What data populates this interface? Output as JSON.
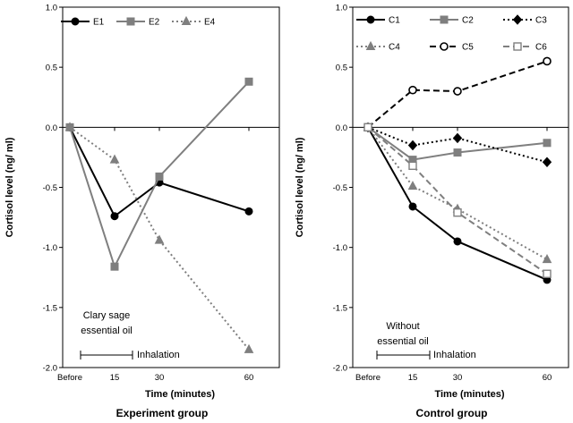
{
  "chart_data": [
    {
      "type": "line",
      "title": "Experiment group",
      "xlabel": "Time (minutes)",
      "ylabel": "Cortisol level (ng/ ml)",
      "categories": [
        "Before",
        "15",
        "30",
        "60"
      ],
      "x": [
        0,
        15,
        30,
        60
      ],
      "ylim": [
        -2.0,
        1.0
      ],
      "yticks": [
        "1.0",
        "0.5",
        "0.0",
        "-0.5",
        "-1.0",
        "-1.5",
        "-2.0"
      ],
      "ytick_values": [
        1.0,
        0.5,
        0.0,
        -0.5,
        -1.0,
        -1.5,
        -2.0
      ],
      "annotation": [
        "Clary sage",
        "essential oil"
      ],
      "inhalation_label": "Inhalation",
      "series": [
        {
          "name": "E1",
          "values": [
            0,
            -0.74,
            -0.46,
            -0.7
          ],
          "color": "#000000",
          "marker": "circle",
          "dash": "solid"
        },
        {
          "name": "E2",
          "values": [
            0,
            -1.16,
            -0.41,
            0.38
          ],
          "color": "#7f7f7f",
          "marker": "square",
          "dash": "solid"
        },
        {
          "name": "E4",
          "values": [
            0,
            -0.27,
            -0.94,
            -1.85
          ],
          "color": "#7f7f7f",
          "marker": "triangle",
          "dash": "dotted"
        }
      ]
    },
    {
      "type": "line",
      "title": "Control group",
      "xlabel": "Time (minutes)",
      "ylabel": "Cortisol level (ng/ ml)",
      "categories": [
        "Before",
        "15",
        "30",
        "60"
      ],
      "x": [
        0,
        15,
        30,
        60
      ],
      "ylim": [
        -2.0,
        1.0
      ],
      "yticks": [
        "1.0",
        "0.5",
        "0.0",
        "-0.5",
        "-1.0",
        "-1.5",
        "-2.0"
      ],
      "ytick_values": [
        1.0,
        0.5,
        0.0,
        -0.5,
        -1.0,
        -1.5,
        -2.0
      ],
      "annotation": [
        "Without",
        "essential oil"
      ],
      "inhalation_label": "Inhalation",
      "series": [
        {
          "name": "C1",
          "values": [
            0,
            -0.66,
            -0.95,
            -1.27
          ],
          "color": "#000000",
          "marker": "circle",
          "dash": "solid"
        },
        {
          "name": "C2",
          "values": [
            0,
            -0.27,
            -0.21,
            -0.13
          ],
          "color": "#7f7f7f",
          "marker": "square",
          "dash": "solid"
        },
        {
          "name": "C3",
          "values": [
            0,
            -0.15,
            -0.09,
            -0.29
          ],
          "color": "#000000",
          "marker": "diamond",
          "dash": "dotted"
        },
        {
          "name": "C4",
          "values": [
            0,
            -0.49,
            -0.68,
            -1.1
          ],
          "color": "#7f7f7f",
          "marker": "triangle",
          "dash": "dotted"
        },
        {
          "name": "C5",
          "values": [
            0,
            0.31,
            0.3,
            0.55
          ],
          "color": "#000000",
          "marker": "circle-open",
          "dash": "dashed"
        },
        {
          "name": "C6",
          "values": [
            0,
            -0.32,
            -0.71,
            -1.22
          ],
          "color": "#7f7f7f",
          "marker": "square-open",
          "dash": "dashed"
        }
      ]
    }
  ]
}
